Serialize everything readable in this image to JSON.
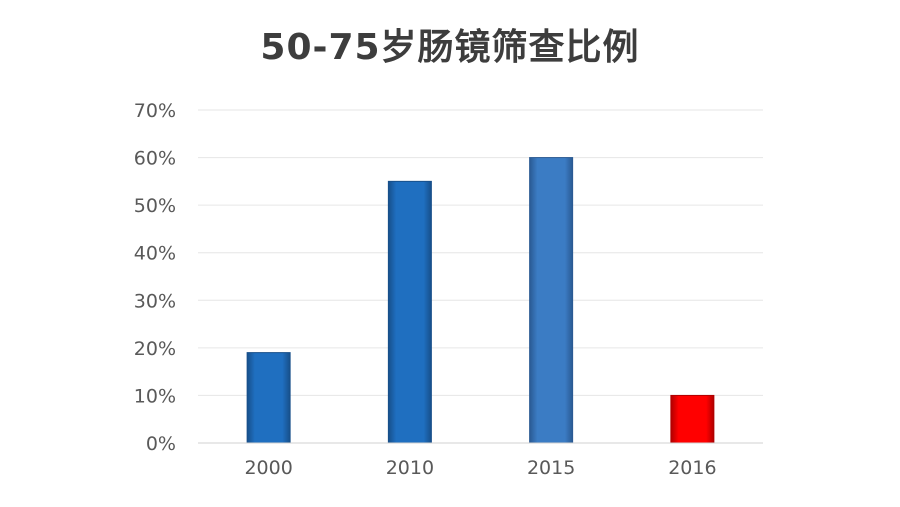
{
  "chart_data": {
    "type": "bar",
    "title": "50-75岁肠镜筛查比例",
    "categories": [
      "2000",
      "2010",
      "2015",
      "2016"
    ],
    "values": [
      19,
      55,
      60,
      10
    ],
    "unit": "%",
    "xlabel": "",
    "ylabel": "",
    "ylim": [
      0,
      70
    ],
    "yticks": [
      0,
      10,
      20,
      30,
      40,
      50,
      60,
      70
    ],
    "ytick_labels": [
      "0%",
      "10%",
      "20%",
      "30%",
      "40%",
      "50%",
      "60%",
      "70%"
    ],
    "grid": true,
    "legend": "none",
    "bar_colors": [
      "#1f6fc0",
      "#1f6fc0",
      "#3b7cc4",
      "#ff0000"
    ],
    "bar_edge_colors": [
      "#174f8a",
      "#174f8a",
      "#2a5a93",
      "#b00000"
    ]
  },
  "colors": {
    "title": "#3d3d3d",
    "gridline": "#e6e6e6",
    "axis_line": "#d0d0d0",
    "tick_text": "#595959"
  }
}
